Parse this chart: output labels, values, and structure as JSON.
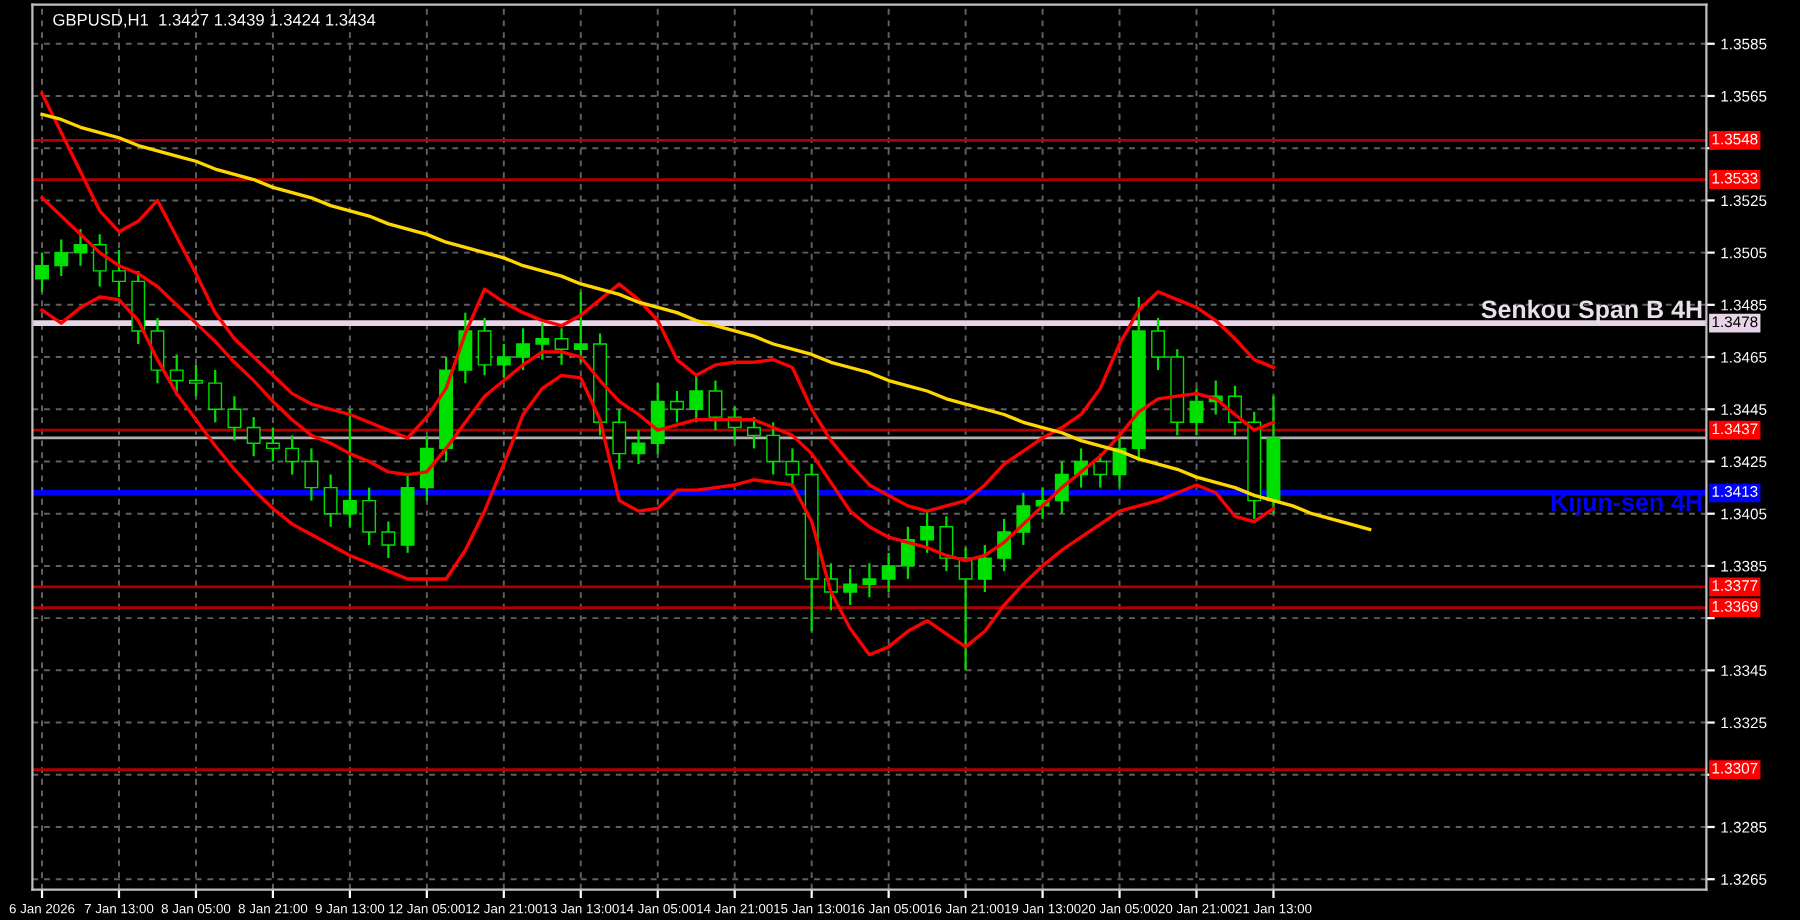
{
  "chart_data": {
    "type": "candlestick",
    "title": "GBPUSD,H1  1.3427 1.3439 1.3424 1.3434",
    "categories": [
      "6 Jan 2026",
      null,
      null,
      null,
      "7 Jan 13:00",
      null,
      null,
      null,
      "8 Jan 05:00",
      null,
      null,
      null,
      "8 Jan 21:00",
      null,
      null,
      null,
      "9 Jan 13:00",
      null,
      null,
      null,
      "12 Jan 05:00",
      null,
      null,
      null,
      "12 Jan 21:00",
      null,
      null,
      null,
      "13 Jan 13:00",
      null,
      null,
      null,
      "14 Jan 05:00",
      null,
      null,
      null,
      "14 Jan 21:00",
      null,
      null,
      null,
      "15 Jan 13:00",
      null,
      null,
      null,
      "16 Jan 05:00",
      null,
      null,
      null,
      "16 Jan 21:00",
      null,
      null,
      null,
      "19 Jan 13:00",
      null,
      null,
      null,
      "20 Jan 05:00",
      null,
      null,
      null,
      "20 Jan 21:00",
      null,
      null,
      null,
      "21 Jan 13:00",
      null,
      null,
      null,
      null,
      null,
      null,
      null,
      null,
      null,
      null,
      null,
      null,
      null,
      null,
      null,
      null,
      null,
      null,
      null,
      null,
      null,
      null
    ],
    "ylim": [
      1.3261,
      1.36
    ],
    "yticks": [
      1.3585,
      1.3565,
      {
        "value": 1.3545,
        "label": null
      },
      1.3525,
      1.3505,
      1.3485,
      1.3465,
      1.3445,
      1.3425,
      1.3405,
      1.3385,
      {
        "value": 1.3365,
        "label": null
      },
      1.3345,
      1.3325,
      {
        "value": 1.3305,
        "label": null
      },
      1.3285,
      1.3265
    ],
    "grid": true,
    "series": [
      {
        "color": "#00e000",
        "ohlc": [
          [
            1.3495,
            1.3505,
            1.349,
            1.35
          ],
          [
            1.35,
            1.351,
            1.3496,
            1.3505
          ],
          [
            1.3505,
            1.3514,
            1.35,
            1.3508
          ],
          [
            1.3508,
            1.3512,
            1.3492,
            1.3498
          ],
          [
            1.3498,
            1.3506,
            1.3488,
            1.3494
          ],
          [
            1.3494,
            1.3498,
            1.347,
            1.3475
          ],
          [
            1.3475,
            1.348,
            1.3455,
            1.346
          ],
          [
            1.346,
            1.3466,
            1.345,
            1.3456
          ],
          [
            1.3456,
            1.3462,
            1.345,
            1.3455
          ],
          [
            1.3455,
            1.346,
            1.344,
            1.3445
          ],
          [
            1.3445,
            1.345,
            1.3433,
            1.3438
          ],
          [
            1.3438,
            1.3442,
            1.3427,
            1.3432
          ],
          [
            1.3432,
            1.3438,
            1.3425,
            1.343
          ],
          [
            1.343,
            1.3435,
            1.342,
            1.3425
          ],
          [
            1.3425,
            1.343,
            1.341,
            1.3415
          ],
          [
            1.3415,
            1.342,
            1.34,
            1.3405
          ],
          [
            1.3405,
            1.3445,
            1.34,
            1.341
          ],
          [
            1.341,
            1.3415,
            1.3393,
            1.3398
          ],
          [
            1.3398,
            1.3402,
            1.3388,
            1.3393
          ],
          [
            1.3393,
            1.342,
            1.339,
            1.3415
          ],
          [
            1.3415,
            1.3435,
            1.341,
            1.343
          ],
          [
            1.343,
            1.3465,
            1.3425,
            1.346
          ],
          [
            1.346,
            1.3482,
            1.3455,
            1.3475
          ],
          [
            1.3475,
            1.348,
            1.3458,
            1.3462
          ],
          [
            1.3462,
            1.347,
            1.3457,
            1.3465
          ],
          [
            1.3465,
            1.3476,
            1.346,
            1.347
          ],
          [
            1.347,
            1.3478,
            1.3464,
            1.3472
          ],
          [
            1.3472,
            1.3476,
            1.3462,
            1.3468
          ],
          [
            1.3468,
            1.349,
            1.3463,
            1.347
          ],
          [
            1.347,
            1.3474,
            1.3435,
            1.344
          ],
          [
            1.344,
            1.3445,
            1.3422,
            1.3428
          ],
          [
            1.3428,
            1.3437,
            1.3424,
            1.3432
          ],
          [
            1.3432,
            1.3455,
            1.3428,
            1.3448
          ],
          [
            1.3448,
            1.3452,
            1.344,
            1.3445
          ],
          [
            1.3445,
            1.3458,
            1.344,
            1.3452
          ],
          [
            1.3452,
            1.3456,
            1.3437,
            1.3442
          ],
          [
            1.3442,
            1.3446,
            1.3433,
            1.3438
          ],
          [
            1.3438,
            1.3442,
            1.343,
            1.3435
          ],
          [
            1.3435,
            1.344,
            1.342,
            1.3425
          ],
          [
            1.3425,
            1.343,
            1.3415,
            1.342
          ],
          [
            1.342,
            1.3424,
            1.336,
            1.338
          ],
          [
            1.338,
            1.3386,
            1.3368,
            1.3375
          ],
          [
            1.3375,
            1.3384,
            1.337,
            1.3378
          ],
          [
            1.3378,
            1.3386,
            1.3373,
            1.338
          ],
          [
            1.338,
            1.339,
            1.3375,
            1.3385
          ],
          [
            1.3385,
            1.34,
            1.338,
            1.3395
          ],
          [
            1.3395,
            1.3406,
            1.339,
            1.34
          ],
          [
            1.34,
            1.3404,
            1.3383,
            1.3388
          ],
          [
            1.3388,
            1.3392,
            1.3345,
            1.338
          ],
          [
            1.338,
            1.3393,
            1.3375,
            1.3388
          ],
          [
            1.3388,
            1.3403,
            1.3383,
            1.3398
          ],
          [
            1.3398,
            1.3413,
            1.3393,
            1.3408
          ],
          [
            1.3408,
            1.3415,
            1.3403,
            1.341
          ],
          [
            1.341,
            1.3425,
            1.3405,
            1.342
          ],
          [
            1.342,
            1.343,
            1.3415,
            1.3425
          ],
          [
            1.3425,
            1.3428,
            1.3415,
            1.342
          ],
          [
            1.342,
            1.3435,
            1.3415,
            1.343
          ],
          [
            1.343,
            1.3488,
            1.3425,
            1.3475
          ],
          [
            1.3475,
            1.348,
            1.346,
            1.3465
          ],
          [
            1.3465,
            1.3468,
            1.3435,
            1.344
          ],
          [
            1.344,
            1.3453,
            1.3435,
            1.3448
          ],
          [
            1.3448,
            1.3456,
            1.3443,
            1.345
          ],
          [
            1.345,
            1.3454,
            1.3435,
            1.344
          ],
          [
            1.344,
            1.3444,
            1.3403,
            1.341
          ],
          [
            1.341,
            1.345,
            1.3405,
            1.3434
          ],
          null,
          null,
          null,
          null,
          null,
          null,
          null,
          null,
          null,
          null,
          null,
          null,
          null,
          null,
          null,
          null,
          null,
          null,
          null,
          null,
          null,
          null
        ]
      },
      {
        "type": "line",
        "color": "#ff0000",
        "values": [
          1.3566,
          1.3551,
          1.3536,
          1.3521,
          1.3513,
          1.3517,
          1.3525,
          1.3511,
          1.3497,
          1.3482,
          1.3472,
          1.3465,
          1.3458,
          1.3451,
          1.3447,
          1.3445,
          1.3443,
          1.344,
          1.3437,
          1.3434,
          1.3442,
          1.3453,
          1.3474,
          1.3491,
          1.3486,
          1.3482,
          1.3479,
          1.3477,
          1.3481,
          1.3487,
          1.3493,
          1.3487,
          1.3479,
          1.3464,
          1.3458,
          1.3462,
          1.3463,
          1.3463,
          1.3464,
          1.3461,
          1.3445,
          1.3433,
          1.3424,
          1.3416,
          1.3412,
          1.3408,
          1.3406,
          1.3408,
          1.341,
          1.3416,
          1.3424,
          1.3429,
          1.3434,
          1.3438,
          1.3443,
          1.3453,
          1.347,
          1.3483,
          1.349,
          1.3487,
          1.3484,
          1.3479,
          1.3472,
          1.3464,
          1.3461,
          null,
          null,
          null,
          null,
          null,
          null,
          null,
          null,
          null,
          null,
          null,
          null,
          null,
          null,
          null,
          null,
          null,
          null,
          null,
          null,
          null,
          null
        ]
      },
      {
        "type": "line",
        "color": "#ff0000",
        "values": [
          1.3526,
          1.3519,
          1.3512,
          1.3505,
          1.35,
          1.3497,
          1.3492,
          1.3485,
          1.3478,
          1.3471,
          1.3463,
          1.3456,
          1.3448,
          1.3441,
          1.3435,
          1.3432,
          1.3428,
          1.3425,
          1.3421,
          1.342,
          1.3421,
          1.343,
          1.344,
          1.345,
          1.3456,
          1.3462,
          1.3467,
          1.3467,
          1.3465,
          1.3456,
          1.3448,
          1.3443,
          1.3437,
          1.3439,
          1.3441,
          1.3441,
          1.3441,
          1.3441,
          1.3438,
          1.3435,
          1.3428,
          1.3417,
          1.3406,
          1.34,
          1.3396,
          1.3394,
          1.3392,
          1.3389,
          1.3387,
          1.3389,
          1.3394,
          1.3401,
          1.3408,
          1.3415,
          1.3421,
          1.3427,
          1.3435,
          1.3444,
          1.3449,
          1.345,
          1.3451,
          1.3449,
          1.3443,
          1.3437,
          1.344,
          null,
          null,
          null,
          null,
          null,
          null,
          null,
          null,
          null,
          null,
          null,
          null,
          null,
          null,
          null,
          null,
          null,
          null,
          null,
          null,
          null,
          null
        ]
      },
      {
        "type": "line",
        "color": "#ff0000",
        "values": [
          1.3483,
          1.3478,
          1.3484,
          1.3488,
          1.3487,
          1.3479,
          1.3464,
          1.3451,
          1.3441,
          1.3431,
          1.3422,
          1.3414,
          1.3407,
          1.3401,
          1.3397,
          1.3393,
          1.3389,
          1.3386,
          1.3383,
          1.338,
          1.338,
          1.338,
          1.3391,
          1.3406,
          1.3424,
          1.3443,
          1.3453,
          1.3458,
          1.3457,
          1.3441,
          1.341,
          1.3406,
          1.3407,
          1.3414,
          1.3414,
          1.3415,
          1.3416,
          1.3418,
          1.3417,
          1.3416,
          1.3402,
          1.3375,
          1.3361,
          1.3351,
          1.3354,
          1.336,
          1.3364,
          1.3359,
          1.3354,
          1.336,
          1.337,
          1.3378,
          1.3385,
          1.3391,
          1.3396,
          1.3401,
          1.3406,
          1.3408,
          1.341,
          1.3413,
          1.3416,
          1.3413,
          1.3404,
          1.3402,
          1.3407,
          null,
          null,
          null,
          null,
          null,
          null,
          null,
          null,
          null,
          null,
          null,
          null,
          null,
          null,
          null,
          null,
          null,
          null,
          null,
          null,
          null,
          null
        ]
      },
      {
        "type": "line",
        "color": "#ffd700",
        "values": [
          1.3558,
          1.3556,
          1.3553,
          1.3551,
          1.3549,
          1.3546,
          1.3544,
          1.3542,
          1.354,
          1.3537,
          1.3535,
          1.3533,
          1.353,
          1.3528,
          1.3526,
          1.3523,
          1.3521,
          1.3519,
          1.3516,
          1.3514,
          1.3512,
          1.3509,
          1.3507,
          1.3505,
          1.3503,
          1.35,
          1.3498,
          1.3496,
          1.3493,
          1.3491,
          1.3489,
          1.3486,
          1.3484,
          1.3482,
          1.3479,
          1.3477,
          1.3475,
          1.3473,
          1.347,
          1.3468,
          1.3466,
          1.3463,
          1.3461,
          1.3459,
          1.3456,
          1.3454,
          1.3452,
          1.3449,
          1.3447,
          1.3445,
          1.3443,
          1.344,
          1.3438,
          1.3436,
          1.3433,
          1.3431,
          1.3429,
          1.3426,
          1.3424,
          1.3422,
          1.3419,
          1.3417,
          1.3415,
          1.3412,
          1.341,
          1.3408,
          1.3405,
          1.3403,
          1.3401,
          1.3399,
          null,
          null,
          null,
          null,
          null,
          null,
          null,
          null,
          null,
          null,
          null,
          null,
          null,
          null,
          null,
          null,
          null
        ]
      }
    ],
    "ref_lines": [
      {
        "axis": "y",
        "value": 1.3548,
        "color": "#b00000",
        "label": "1.3548"
      },
      {
        "axis": "y",
        "value": 1.3533,
        "color": "#b00000",
        "label": "1.3533"
      },
      {
        "axis": "y",
        "value": 1.3478,
        "color": "#e8d4e8",
        "label": "1.3478"
      },
      {
        "axis": "y",
        "value": 1.3437,
        "color": "#b00000",
        "label": "1.3437"
      },
      {
        "axis": "y",
        "value": 1.3434,
        "color": "#b0b0b0"
      },
      {
        "axis": "y",
        "value": 1.3413,
        "color": "#0000ff",
        "label": "1.3413"
      },
      {
        "axis": "y",
        "value": 1.3377,
        "color": "#b00000",
        "label": "1.3377"
      },
      {
        "axis": "y",
        "value": 1.3369,
        "color": "#b00000",
        "label": "1.3369"
      },
      {
        "axis": "y",
        "value": 1.3307,
        "color": "#b00000",
        "label": "1.3307"
      }
    ],
    "annotations": [
      {
        "text": "Senkou Span B 4H",
        "y": 1.3478
      },
      {
        "text": "Kijun-sen 4H",
        "y": 1.3413
      }
    ]
  }
}
